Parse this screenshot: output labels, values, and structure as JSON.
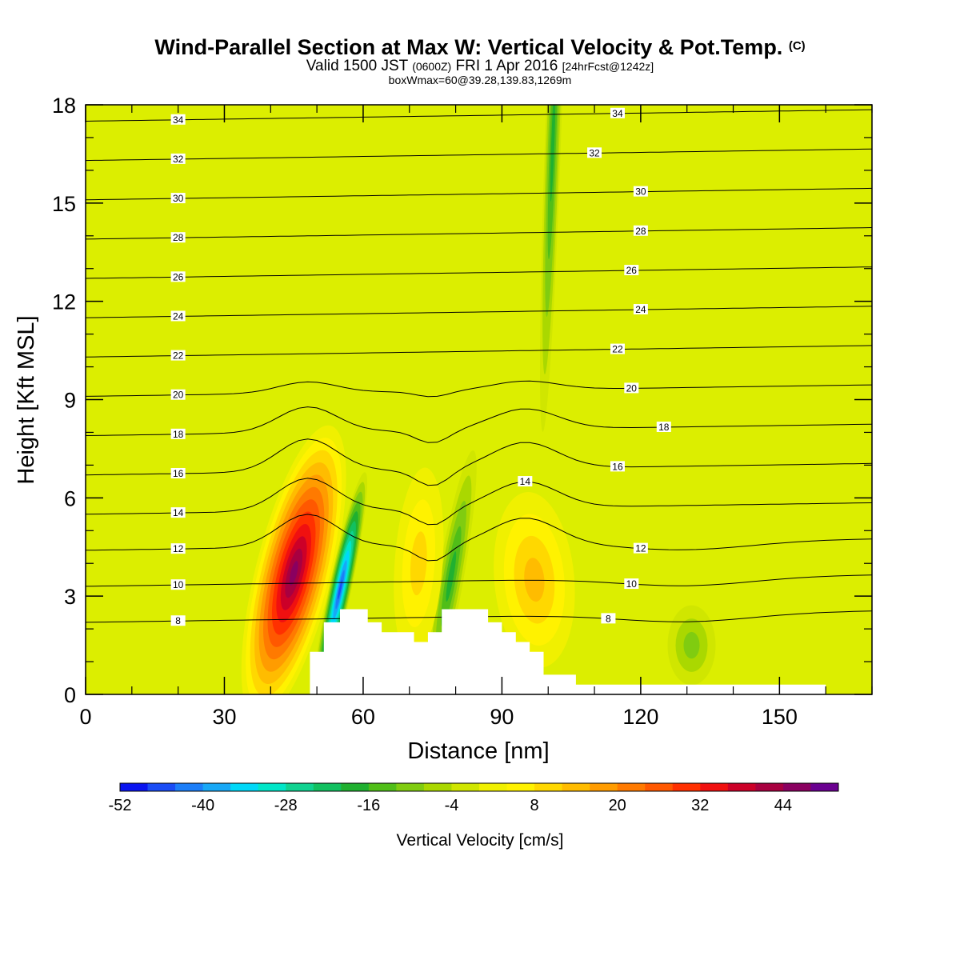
{
  "title": {
    "main": "Wind-Parallel Section at Max W: Vertical Velocity & Pot.Temp.",
    "copyright": "(C)",
    "valid_prefix": "Valid 1500 JST",
    "valid_zulu": "(0600Z)",
    "valid_date": "FRI 1 Apr 2016",
    "forecast": "[24hrFcst@1242z]",
    "box_info": "boxWmax=60@39.28,139.83,1269m"
  },
  "chart_data": {
    "type": "heatmap",
    "xlabel": "Distance [nm]",
    "ylabel": "Height [Kft MSL]",
    "xlim": [
      0,
      170
    ],
    "ylim": [
      0,
      18
    ],
    "x_ticks": [
      0,
      30,
      60,
      90,
      120,
      150
    ],
    "y_ticks": [
      0,
      3,
      6,
      9,
      12,
      15,
      18
    ],
    "grid": false,
    "colorbar": {
      "label": "Vertical Velocity [cm/s]",
      "placement": "bottom",
      "tick_labels": [
        -52,
        -40,
        -28,
        -16,
        -4,
        8,
        20,
        32,
        44
      ],
      "levels": [
        -52,
        -48,
        -44,
        -40,
        -36,
        -32,
        -28,
        -24,
        -20,
        -16,
        -12,
        -8,
        -4,
        0,
        4,
        8,
        12,
        16,
        20,
        24,
        28,
        32,
        36,
        40,
        44,
        48,
        52
      ],
      "colors": [
        "#0a14f0",
        "#1a4cf5",
        "#1c7ef8",
        "#18a8f6",
        "#00d8f8",
        "#00e6c8",
        "#10d290",
        "#12c060",
        "#20b030",
        "#50be18",
        "#80cc10",
        "#aad800",
        "#d0e600",
        "#f0f000",
        "#fff200",
        "#ffd800",
        "#ffbc00",
        "#ff9c00",
        "#ff7a00",
        "#ff5800",
        "#ff3000",
        "#f01010",
        "#cc0028",
        "#a80040",
        "#8a0060",
        "#6a0090"
      ]
    },
    "contour_lines": {
      "field": "potential temperature",
      "levels": [
        8,
        10,
        12,
        14,
        16,
        18,
        20,
        22,
        24,
        26,
        28,
        30,
        32,
        34
      ]
    },
    "features": [
      {
        "x": 45,
        "y": 3.7,
        "w": 48
      },
      {
        "x": 55,
        "y": 3.2,
        "w": -48
      },
      {
        "x": 79,
        "y": 3.6,
        "w": -20
      },
      {
        "x": 72,
        "y": 4.0,
        "w": 12
      },
      {
        "x": 97,
        "y": 3.5,
        "w": 14
      },
      {
        "x": 101,
        "y": 16.8,
        "w": -20
      },
      {
        "x": 131,
        "y": 1.5,
        "w": -12
      }
    ],
    "terrain": [
      [
        48.5,
        0
      ],
      [
        48.5,
        1.3
      ],
      [
        51.5,
        1.3
      ],
      [
        51.5,
        2.2
      ],
      [
        55,
        2.2
      ],
      [
        55,
        2.6
      ],
      [
        61,
        2.6
      ],
      [
        61,
        2.2
      ],
      [
        64,
        2.2
      ],
      [
        64,
        1.9
      ],
      [
        71,
        1.9
      ],
      [
        71,
        1.6
      ],
      [
        74,
        1.6
      ],
      [
        74,
        1.9
      ],
      [
        77,
        1.9
      ],
      [
        77,
        2.6
      ],
      [
        87,
        2.6
      ],
      [
        87,
        2.2
      ],
      [
        90,
        2.2
      ],
      [
        90,
        1.9
      ],
      [
        93,
        1.9
      ],
      [
        93,
        1.6
      ],
      [
        96,
        1.6
      ],
      [
        96,
        1.3
      ],
      [
        99,
        1.3
      ],
      [
        99,
        0.6
      ],
      [
        106,
        0.6
      ],
      [
        106,
        0.3
      ],
      [
        160,
        0.3
      ],
      [
        160,
        0
      ]
    ]
  }
}
